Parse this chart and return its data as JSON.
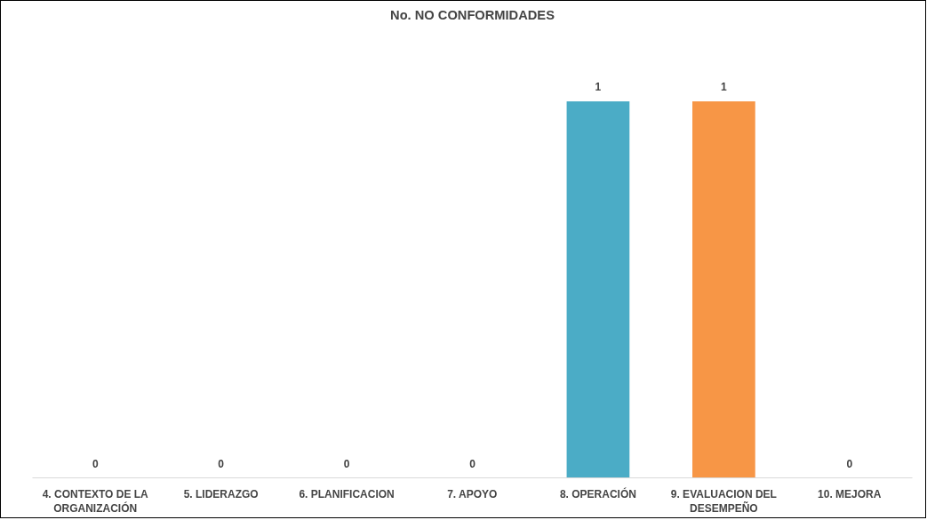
{
  "chart_data": {
    "type": "bar",
    "title": "No. NO CONFORMIDADES",
    "categories": [
      "4. CONTEXTO DE LA ORGANIZACIÓN",
      "5. LIDERAZGO",
      "6. PLANIFICACION",
      "7. APOYO",
      "8. OPERACIÓN",
      "9. EVALUACION DEL DESEMPEÑO",
      "10. MEJORA"
    ],
    "values": [
      0,
      0,
      0,
      0,
      1,
      1,
      0
    ],
    "colors": [
      "#4f81bd",
      "#c0504d",
      "#9bbb59",
      "#8064a2",
      "#4bacc6",
      "#f79646",
      "#2c4d75"
    ],
    "tick_labels": "x",
    "data_labels": true,
    "grid": false
  }
}
